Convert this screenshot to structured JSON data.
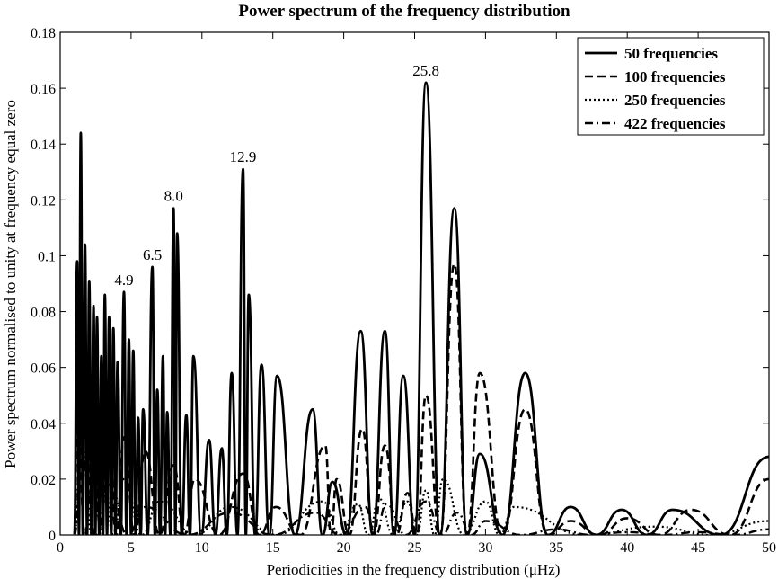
{
  "chart_data": {
    "type": "line",
    "title": "Power spectrum of the frequency distribution",
    "xlabel": "Periodicities in the frequency distribution (μHz)",
    "ylabel": "Power spectrum normalised to unity at frequency equal zero",
    "xlim": [
      0,
      50
    ],
    "ylim": [
      0,
      0.18
    ],
    "xticks": [
      "0",
      "5",
      "10",
      "15",
      "20",
      "25",
      "30",
      "35",
      "40",
      "45",
      "50"
    ],
    "yticks": [
      "0",
      "0.02",
      "0.04",
      "0.06",
      "0.08",
      "0.1",
      "0.12",
      "0.14",
      "0.16",
      "0.18"
    ],
    "grid": false,
    "legend_position": "top-right",
    "annotations": [
      {
        "text": "4.9",
        "x": 4.5,
        "y": 0.087
      },
      {
        "text": "6.5",
        "x": 6.5,
        "y": 0.096
      },
      {
        "text": "8.0",
        "x": 8.0,
        "y": 0.117
      },
      {
        "text": "12.9",
        "x": 12.9,
        "y": 0.131
      },
      {
        "text": "25.8",
        "x": 25.8,
        "y": 0.162
      }
    ],
    "series": [
      {
        "name": "50 frequencies",
        "style": "solid",
        "peaks": [
          [
            1.2,
            0.098
          ],
          [
            1.45,
            0.144
          ],
          [
            1.75,
            0.104
          ],
          [
            2.05,
            0.091
          ],
          [
            2.35,
            0.082
          ],
          [
            2.6,
            0.078
          ],
          [
            2.9,
            0.064
          ],
          [
            3.15,
            0.086
          ],
          [
            3.45,
            0.078
          ],
          [
            3.75,
            0.074
          ],
          [
            4.05,
            0.062
          ],
          [
            4.5,
            0.087
          ],
          [
            4.85,
            0.07
          ],
          [
            5.15,
            0.066
          ],
          [
            5.5,
            0.042
          ],
          [
            5.85,
            0.045
          ],
          [
            6.5,
            0.096
          ],
          [
            6.85,
            0.052
          ],
          [
            7.25,
            0.064
          ],
          [
            7.55,
            0.044
          ],
          [
            8.0,
            0.117
          ],
          [
            8.25,
            0.108
          ],
          [
            8.9,
            0.043
          ],
          [
            9.4,
            0.064
          ],
          [
            10.5,
            0.034
          ],
          [
            11.4,
            0.031
          ],
          [
            12.1,
            0.058
          ],
          [
            12.9,
            0.131
          ],
          [
            13.3,
            0.086
          ],
          [
            14.2,
            0.061
          ],
          [
            15.3,
            0.057
          ],
          [
            17.8,
            0.045
          ],
          [
            19.2,
            0.019
          ],
          [
            21.2,
            0.073
          ],
          [
            22.9,
            0.073
          ],
          [
            24.2,
            0.057
          ],
          [
            25.8,
            0.162
          ],
          [
            27.8,
            0.117
          ],
          [
            29.6,
            0.029
          ],
          [
            32.8,
            0.058
          ],
          [
            36.0,
            0.01
          ],
          [
            39.6,
            0.009
          ],
          [
            43.2,
            0.009
          ],
          [
            50.0,
            0.028
          ]
        ]
      },
      {
        "name": "100 frequencies",
        "style": "dashed",
        "peaks": [
          [
            1.2,
            0.045
          ],
          [
            2.3,
            0.044
          ],
          [
            3.4,
            0.04
          ],
          [
            4.5,
            0.035
          ],
          [
            6.0,
            0.03
          ],
          [
            8.0,
            0.025
          ],
          [
            9.5,
            0.02
          ],
          [
            12.9,
            0.022
          ],
          [
            15.2,
            0.01
          ],
          [
            18.7,
            0.032
          ],
          [
            19.5,
            0.02
          ],
          [
            21.3,
            0.038
          ],
          [
            22.9,
            0.032
          ],
          [
            24.5,
            0.015
          ],
          [
            25.8,
            0.05
          ],
          [
            27.8,
            0.097
          ],
          [
            29.6,
            0.058
          ],
          [
            32.8,
            0.045
          ],
          [
            36.0,
            0.005
          ],
          [
            40.0,
            0.006
          ],
          [
            44.5,
            0.009
          ],
          [
            50.0,
            0.02
          ]
        ]
      },
      {
        "name": "250 frequencies",
        "style": "dotted",
        "peaks": [
          [
            1.5,
            0.034
          ],
          [
            3.0,
            0.025
          ],
          [
            4.5,
            0.02
          ],
          [
            7.0,
            0.012
          ],
          [
            12.0,
            0.01
          ],
          [
            18.5,
            0.012
          ],
          [
            21.0,
            0.011
          ],
          [
            22.5,
            0.013
          ],
          [
            24.5,
            0.012
          ],
          [
            25.8,
            0.016
          ],
          [
            27.0,
            0.02
          ],
          [
            30.0,
            0.012
          ],
          [
            32.0,
            0.01
          ],
          [
            42.0,
            0.003
          ],
          [
            50.0,
            0.005
          ]
        ]
      },
      {
        "name": "422 frequencies",
        "style": "dashdot",
        "peaks": [
          [
            1.5,
            0.028
          ],
          [
            3.5,
            0.018
          ],
          [
            6.0,
            0.01
          ],
          [
            12.0,
            0.008
          ],
          [
            18.0,
            0.008
          ],
          [
            21.5,
            0.01
          ],
          [
            23.0,
            0.011
          ],
          [
            25.8,
            0.012
          ],
          [
            28.0,
            0.008
          ],
          [
            30.0,
            0.005
          ],
          [
            35.0,
            0.002
          ],
          [
            40.0,
            0.001
          ],
          [
            45.0,
            0.001
          ],
          [
            50.0,
            0.002
          ]
        ]
      }
    ]
  }
}
